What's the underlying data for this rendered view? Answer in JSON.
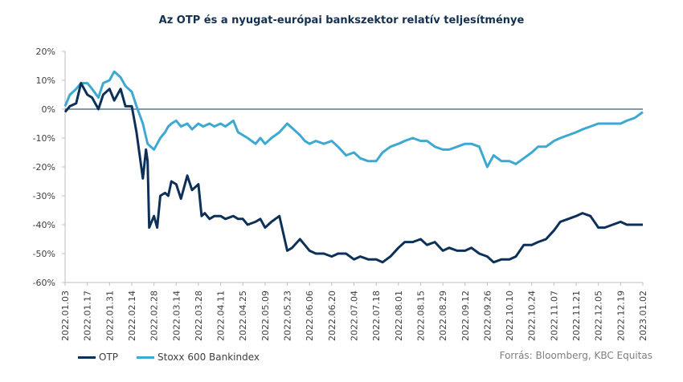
{
  "chart_data": {
    "type": "line",
    "title": "Az OTP és a nyugat-európai bankszektor relatív teljesítménye",
    "source": "Forrás: Bloomberg, KBC Equitas",
    "ylim": [
      -60,
      20
    ],
    "yticks": [
      20,
      10,
      0,
      -10,
      -20,
      -30,
      -40,
      -50,
      -60
    ],
    "yticklabels": [
      "20%",
      "10%",
      "0%",
      "-10%",
      "-20%",
      "-30%",
      "-40%",
      "-50%",
      "-60%"
    ],
    "xlim": [
      "2022-01-03",
      "2023-01-02"
    ],
    "xticks": [
      "2022.01.03",
      "2022.01.17",
      "2022.01.31",
      "2022.02.14",
      "2022.02.28",
      "2022.03.14",
      "2022.03.28",
      "2022.04.11",
      "2022.04.25",
      "2022.05.09",
      "2022.05.23",
      "2022.06.06",
      "2022.06.20",
      "2022.07.04",
      "2022.07.18",
      "2022.08.01",
      "2022.08.15",
      "2022.08.29",
      "2022.09.12",
      "2022.09.26",
      "2022.10.10",
      "2022.10.24",
      "2022.11.07",
      "2022.11.21",
      "2022.12.05",
      "2022.12.19",
      "2023.01.02"
    ],
    "legend_position": "bottom-left",
    "grid": false,
    "series": [
      {
        "name": "OTP",
        "color": "#0d3058",
        "x": [
          "2022-01-03",
          "2022-01-06",
          "2022-01-10",
          "2022-01-13",
          "2022-01-17",
          "2022-01-20",
          "2022-01-24",
          "2022-01-27",
          "2022-01-31",
          "2022-02-03",
          "2022-02-07",
          "2022-02-10",
          "2022-02-14",
          "2022-02-17",
          "2022-02-21",
          "2022-02-23",
          "2022-02-24",
          "2022-02-25",
          "2022-02-28",
          "2022-03-02",
          "2022-03-04",
          "2022-03-07",
          "2022-03-09",
          "2022-03-11",
          "2022-03-14",
          "2022-03-17",
          "2022-03-21",
          "2022-03-24",
          "2022-03-28",
          "2022-03-30",
          "2022-04-01",
          "2022-04-04",
          "2022-04-07",
          "2022-04-11",
          "2022-04-14",
          "2022-04-19",
          "2022-04-22",
          "2022-04-25",
          "2022-04-28",
          "2022-05-03",
          "2022-05-06",
          "2022-05-09",
          "2022-05-13",
          "2022-05-18",
          "2022-05-23",
          "2022-05-26",
          "2022-05-31",
          "2022-06-03",
          "2022-06-06",
          "2022-06-10",
          "2022-06-15",
          "2022-06-20",
          "2022-06-24",
          "2022-06-29",
          "2022-07-04",
          "2022-07-08",
          "2022-07-13",
          "2022-07-18",
          "2022-07-22",
          "2022-07-27",
          "2022-08-01",
          "2022-08-05",
          "2022-08-10",
          "2022-08-15",
          "2022-08-19",
          "2022-08-24",
          "2022-08-29",
          "2022-09-02",
          "2022-09-07",
          "2022-09-12",
          "2022-09-16",
          "2022-09-21",
          "2022-09-26",
          "2022-09-30",
          "2022-10-05",
          "2022-10-10",
          "2022-10-14",
          "2022-10-19",
          "2022-10-24",
          "2022-10-28",
          "2022-11-02",
          "2022-11-07",
          "2022-11-11",
          "2022-11-16",
          "2022-11-21",
          "2022-11-25",
          "2022-11-30",
          "2022-12-05",
          "2022-12-09",
          "2022-12-14",
          "2022-12-19",
          "2022-12-23",
          "2022-12-28",
          "2023-01-02"
        ],
        "values": [
          -1,
          1,
          2,
          9,
          5,
          4,
          0,
          5,
          7,
          3,
          7,
          1,
          1,
          -8,
          -24,
          -14,
          -18,
          -41,
          -37,
          -41,
          -30,
          -29,
          -30,
          -25,
          -26,
          -31,
          -23,
          -28,
          -26,
          -37,
          -36,
          -38,
          -37,
          -37,
          -38,
          -37,
          -38,
          -38,
          -40,
          -39,
          -38,
          -41,
          -39,
          -37,
          -49,
          -48,
          -45,
          -47,
          -49,
          -50,
          -50,
          -51,
          -50,
          -50,
          -52,
          -51,
          -52,
          -52,
          -53,
          -51,
          -48,
          -46,
          -46,
          -45,
          -47,
          -46,
          -49,
          -48,
          -49,
          -49,
          -48,
          -50,
          -51,
          -53,
          -52,
          -52,
          -51,
          -47,
          -47,
          -46,
          -45,
          -42,
          -39,
          -38,
          -37,
          -36,
          -37,
          -41,
          -41,
          -40,
          -39,
          -40,
          -40,
          -40
        ]
      },
      {
        "name": "Stoxx 600 Bankindex",
        "color": "#3da9d3",
        "x": [
          "2022-01-03",
          "2022-01-06",
          "2022-01-10",
          "2022-01-13",
          "2022-01-17",
          "2022-01-20",
          "2022-01-24",
          "2022-01-27",
          "2022-01-31",
          "2022-02-03",
          "2022-02-07",
          "2022-02-10",
          "2022-02-14",
          "2022-02-17",
          "2022-02-21",
          "2022-02-24",
          "2022-02-28",
          "2022-03-02",
          "2022-03-04",
          "2022-03-07",
          "2022-03-09",
          "2022-03-11",
          "2022-03-14",
          "2022-03-17",
          "2022-03-21",
          "2022-03-24",
          "2022-03-28",
          "2022-03-31",
          "2022-04-04",
          "2022-04-07",
          "2022-04-11",
          "2022-04-14",
          "2022-04-19",
          "2022-04-22",
          "2022-04-25",
          "2022-04-28",
          "2022-05-03",
          "2022-05-06",
          "2022-05-09",
          "2022-05-13",
          "2022-05-18",
          "2022-05-23",
          "2022-05-27",
          "2022-05-31",
          "2022-06-03",
          "2022-06-06",
          "2022-06-10",
          "2022-06-15",
          "2022-06-20",
          "2022-06-24",
          "2022-06-29",
          "2022-07-04",
          "2022-07-08",
          "2022-07-13",
          "2022-07-18",
          "2022-07-22",
          "2022-07-27",
          "2022-08-01",
          "2022-08-05",
          "2022-08-10",
          "2022-08-15",
          "2022-08-19",
          "2022-08-24",
          "2022-08-29",
          "2022-09-02",
          "2022-09-07",
          "2022-09-12",
          "2022-09-16",
          "2022-09-21",
          "2022-09-26",
          "2022-09-30",
          "2022-10-05",
          "2022-10-10",
          "2022-10-14",
          "2022-10-19",
          "2022-10-24",
          "2022-10-28",
          "2022-11-02",
          "2022-11-07",
          "2022-11-11",
          "2022-11-16",
          "2022-11-21",
          "2022-11-25",
          "2022-11-30",
          "2022-12-05",
          "2022-12-09",
          "2022-12-14",
          "2022-12-19",
          "2022-12-23",
          "2022-12-28",
          "2023-01-02"
        ],
        "values": [
          1,
          5,
          7,
          9,
          9,
          7,
          4,
          9,
          10,
          13,
          11,
          8,
          6,
          1,
          -5,
          -12,
          -14,
          -12,
          -10,
          -8,
          -6,
          -5,
          -4,
          -6,
          -5,
          -7,
          -5,
          -6,
          -5,
          -6,
          -5,
          -6,
          -4,
          -8,
          -9,
          -10,
          -12,
          -10,
          -12,
          -10,
          -8,
          -5,
          -7,
          -9,
          -11,
          -12,
          -11,
          -12,
          -11,
          -13,
          -16,
          -15,
          -17,
          -18,
          -18,
          -15,
          -13,
          -12,
          -11,
          -10,
          -11,
          -11,
          -13,
          -14,
          -14,
          -13,
          -12,
          -12,
          -13,
          -20,
          -16,
          -18,
          -18,
          -19,
          -17,
          -15,
          -13,
          -13,
          -11,
          -10,
          -9,
          -8,
          -7,
          -6,
          -5,
          -5,
          -5,
          -5,
          -4,
          -3,
          -1
        ]
      }
    ]
  }
}
